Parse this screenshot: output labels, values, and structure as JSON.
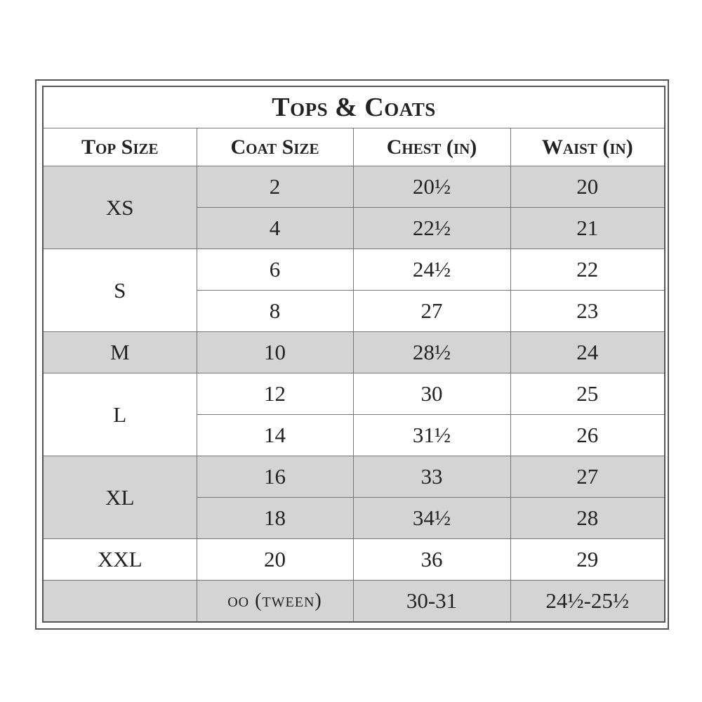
{
  "table": {
    "title": "Tops & Coats",
    "headers": [
      "Top Size",
      "Coat Size",
      "Chest (in)",
      "Waist (in)"
    ],
    "groups": [
      {
        "top": "XS",
        "rows": [
          [
            "2",
            "20½",
            "20"
          ],
          [
            "4",
            "22½",
            "21"
          ]
        ]
      },
      {
        "top": "S",
        "rows": [
          [
            "6",
            "24½",
            "22"
          ],
          [
            "8",
            "27",
            "23"
          ]
        ]
      },
      {
        "top": "M",
        "rows": [
          [
            "10",
            "28½",
            "24"
          ]
        ]
      },
      {
        "top": "L",
        "rows": [
          [
            "12",
            "30",
            "25"
          ],
          [
            "14",
            "31½",
            "26"
          ]
        ]
      },
      {
        "top": "XL",
        "rows": [
          [
            "16",
            "33",
            "27"
          ],
          [
            "18",
            "34½",
            "28"
          ]
        ]
      },
      {
        "top": "XXL",
        "rows": [
          [
            "20",
            "36",
            "29"
          ]
        ]
      },
      {
        "rows": [
          [
            "oo (tween)",
            "30-31",
            "24½-25½"
          ]
        ]
      }
    ]
  }
}
